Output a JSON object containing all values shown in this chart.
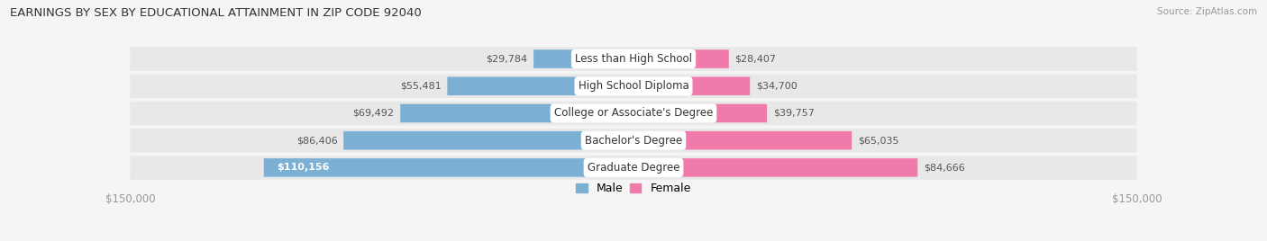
{
  "title": "EARNINGS BY SEX BY EDUCATIONAL ATTAINMENT IN ZIP CODE 92040",
  "source": "Source: ZipAtlas.com",
  "categories": [
    "Less than High School",
    "High School Diploma",
    "College or Associate's Degree",
    "Bachelor's Degree",
    "Graduate Degree"
  ],
  "male_values": [
    29784,
    55481,
    69492,
    86406,
    110156
  ],
  "female_values": [
    28407,
    34700,
    39757,
    65035,
    84666
  ],
  "male_color": "#7bafd4",
  "female_color": "#f07aaa",
  "male_label": "Male",
  "female_label": "Female",
  "max_val": 150000,
  "bg_color": "#f5f5f5",
  "row_bg_color": "#e8e8e8",
  "label_color": "#555555",
  "title_color": "#333333",
  "axis_label_color": "#999999"
}
